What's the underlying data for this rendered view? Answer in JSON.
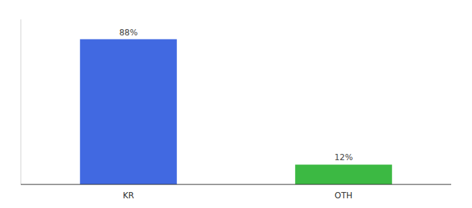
{
  "chart_data": {
    "type": "bar",
    "categories": [
      "KR",
      "OTH"
    ],
    "values": [
      88,
      12
    ],
    "colors": [
      "#4169E1",
      "#3CB943"
    ],
    "ylim": [
      0,
      100
    ],
    "data_labels": true,
    "value_labels": [
      "88%",
      "12%"
    ],
    "tick_labels": "x",
    "grid": false
  }
}
